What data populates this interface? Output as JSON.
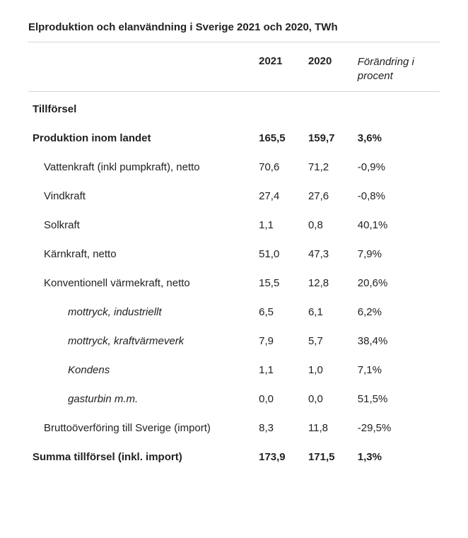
{
  "title": "Elproduktion och elanvändning i Sverige 2021 och 2020, TWh",
  "headers": {
    "c1": "2021",
    "c2": "2020",
    "c3": "Förändring i procent"
  },
  "rows": [
    {
      "label": "Tillförsel",
      "v1": "",
      "v2": "",
      "v3": "",
      "section": true
    },
    {
      "label": "Produktion inom landet",
      "v1": "165,5",
      "v2": "159,7",
      "v3": "3,6%",
      "bold": true
    },
    {
      "label": "Vattenkraft (inkl pumpkraft), netto",
      "v1": "70,6",
      "v2": "71,2",
      "v3": "-0,9%",
      "indent": 1
    },
    {
      "label": "Vindkraft",
      "v1": "27,4",
      "v2": "27,6",
      "v3": "-0,8%",
      "indent": 1
    },
    {
      "label": "Solkraft",
      "v1": "1,1",
      "v2": "0,8",
      "v3": "40,1%",
      "indent": 1
    },
    {
      "label": "Kärnkraft, netto",
      "v1": "51,0",
      "v2": "47,3",
      "v3": "7,9%",
      "indent": 1
    },
    {
      "label": "Konventionell värmekraft, netto",
      "v1": "15,5",
      "v2": "12,8",
      "v3": "20,6%",
      "indent": 1
    },
    {
      "label": "mottryck, industriellt",
      "v1": "6,5",
      "v2": "6,1",
      "v3": "6,2%",
      "indent": 2
    },
    {
      "label": "mottryck, kraftvärmeverk",
      "v1": "7,9",
      "v2": "5,7",
      "v3": "38,4%",
      "indent": 2
    },
    {
      "label": "Kondens",
      "v1": "1,1",
      "v2": "1,0",
      "v3": "7,1%",
      "indent": 2
    },
    {
      "label": "gasturbin m.m.",
      "v1": "0,0",
      "v2": "0,0",
      "v3": "51,5%",
      "indent": 2
    },
    {
      "label": "Bruttoöverföring till Sverige (import)",
      "v1": "8,3",
      "v2": "11,8",
      "v3": "-29,5%",
      "indent": 1
    },
    {
      "label": "Summa tillförsel (inkl. import)",
      "v1": "173,9",
      "v2": "171,5",
      "v3": "1,3%",
      "bold": true
    }
  ]
}
